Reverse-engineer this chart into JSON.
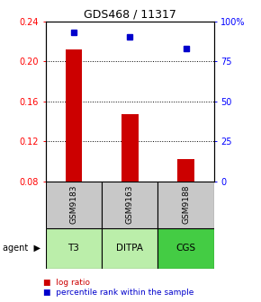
{
  "title": "GDS468 / 11317",
  "categories": [
    "T3",
    "DITPA",
    "CGS"
  ],
  "gsm_labels": [
    "GSM9183",
    "GSM9163",
    "GSM9188"
  ],
  "log_ratios": [
    0.212,
    0.147,
    0.102
  ],
  "percentile_ranks": [
    93,
    90,
    83
  ],
  "ylim_left": [
    0.08,
    0.24
  ],
  "ylim_right": [
    0,
    100
  ],
  "yticks_left": [
    0.08,
    0.12,
    0.16,
    0.2,
    0.24
  ],
  "ytick_labels_left": [
    "0.08",
    "0.12",
    "0.16",
    "0.20",
    "0.24"
  ],
  "yticks_right": [
    0,
    25,
    50,
    75,
    100
  ],
  "ytick_labels_right": [
    "0",
    "25",
    "50",
    "75",
    "100%"
  ],
  "bar_color": "#cc0000",
  "dot_color": "#0000cc",
  "gsm_bg_color": "#c8c8c8",
  "agent_bg_color_light": "#bbeeaa",
  "agent_bg_color_dark": "#44cc44",
  "agent_colors": [
    "#bbeeaa",
    "#bbeeaa",
    "#44cc44"
  ],
  "grid_color": "#000000",
  "baseline": 0.08,
  "x_positions": [
    0.5,
    1.5,
    2.5
  ],
  "bar_width": 0.3
}
